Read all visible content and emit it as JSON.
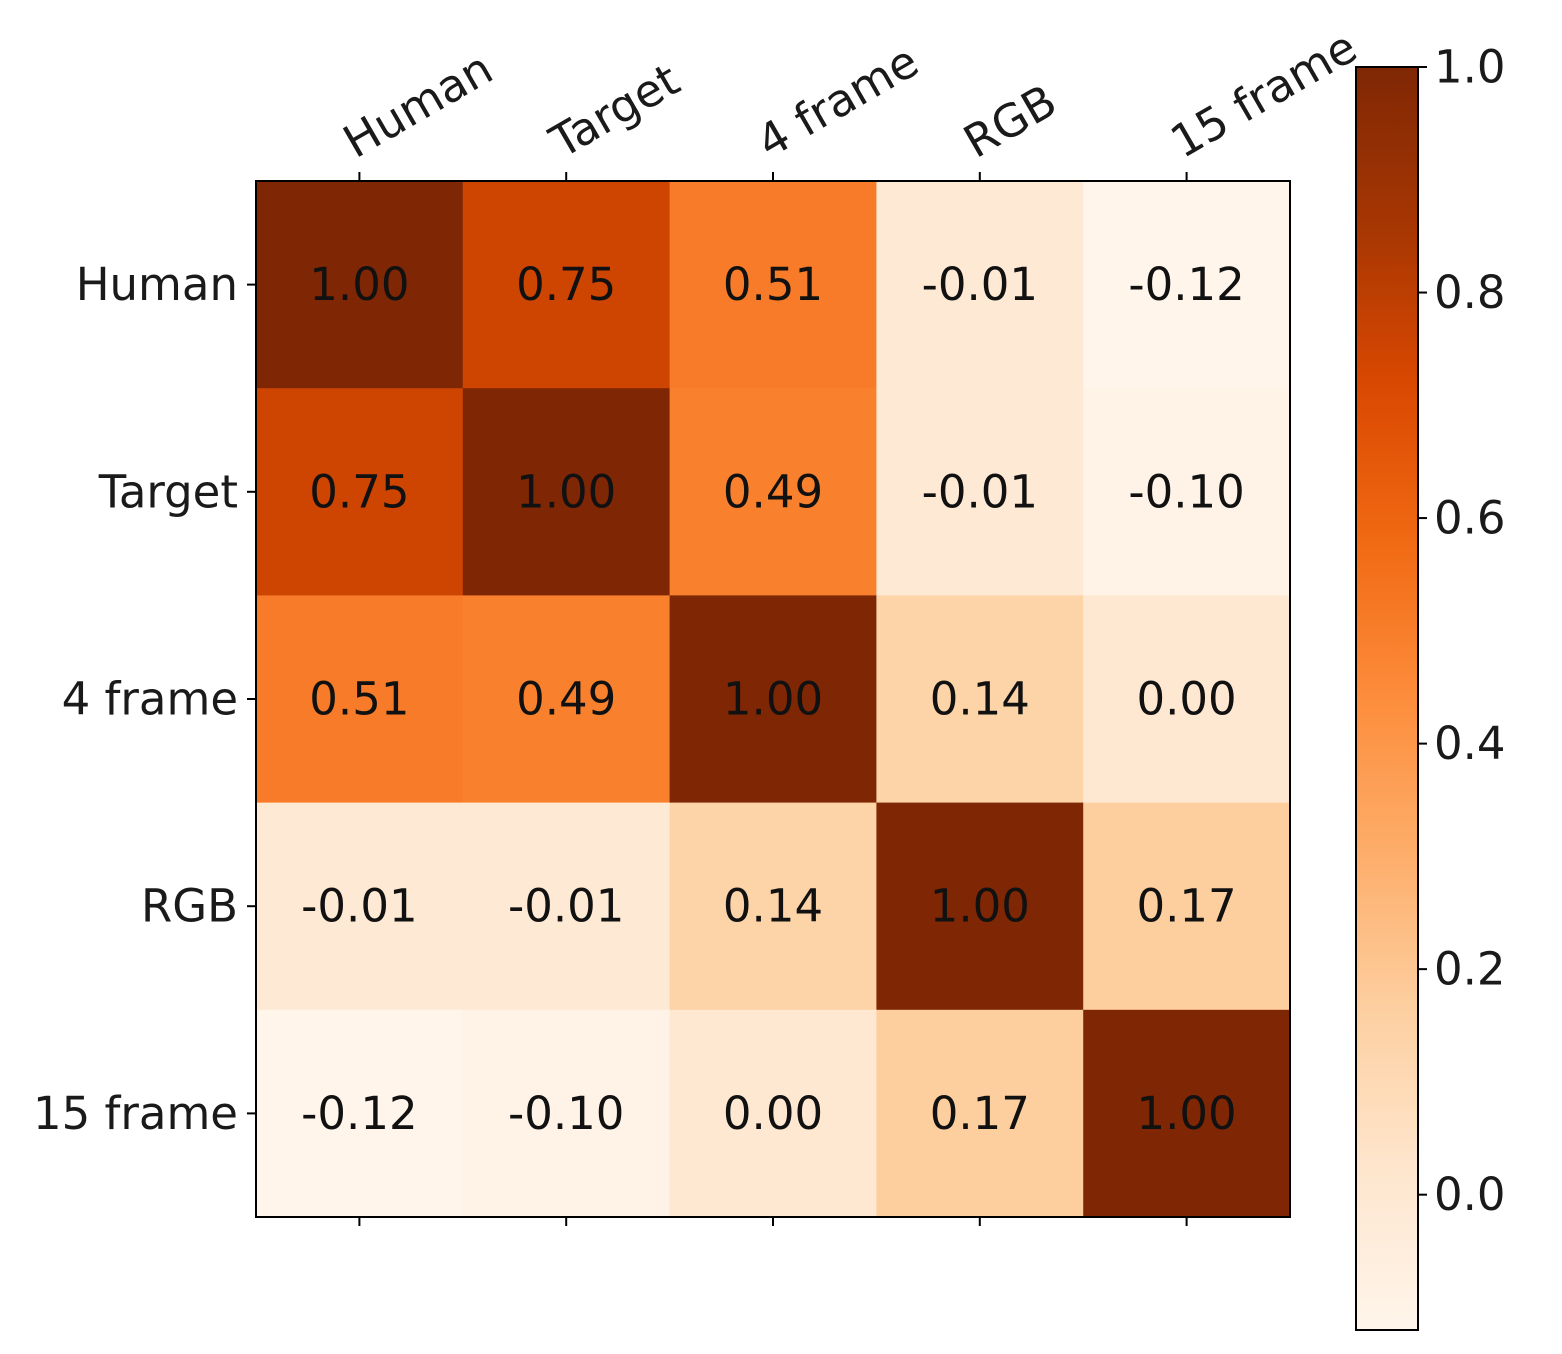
{
  "chart_data": {
    "type": "heatmap",
    "title": "",
    "xlabel": "",
    "ylabel": "",
    "row_labels": [
      "Human",
      "Target",
      "4 frame",
      "RGB",
      "15 frame"
    ],
    "col_labels": [
      "Human",
      "Target",
      "4 frame",
      "RGB",
      "15 frame"
    ],
    "values": [
      [
        1.0,
        0.75,
        0.51,
        -0.01,
        -0.12
      ],
      [
        0.75,
        1.0,
        0.49,
        -0.01,
        -0.1
      ],
      [
        0.51,
        0.49,
        1.0,
        0.14,
        0.0
      ],
      [
        -0.01,
        -0.01,
        0.14,
        1.0,
        0.17
      ],
      [
        -0.12,
        -0.1,
        0.0,
        0.17,
        1.0
      ]
    ],
    "cell_labels": [
      [
        "1.00",
        "0.75",
        "0.51",
        "-0.01",
        "-0.12"
      ],
      [
        "0.75",
        "1.00",
        "0.49",
        "-0.01",
        "-0.10"
      ],
      [
        "0.51",
        "0.49",
        "1.00",
        "0.14",
        "0.00"
      ],
      [
        "-0.01",
        "-0.01",
        "0.14",
        "1.00",
        "0.17"
      ],
      [
        "-0.12",
        "-0.10",
        "0.00",
        "0.17",
        "1.00"
      ]
    ],
    "colormap": "Oranges",
    "colormap_stops": [
      "#fff5eb",
      "#fee6ce",
      "#fdd0a2",
      "#fdae6b",
      "#fd8d3c",
      "#f16913",
      "#d94801",
      "#a63603",
      "#7f2704"
    ],
    "vmin": -0.12,
    "vmax": 1.0,
    "colorbar_ticks": [
      0.0,
      0.2,
      0.4,
      0.6,
      0.8,
      1.0
    ],
    "colorbar_tick_labels": [
      "0.0",
      "0.2",
      "0.4",
      "0.6",
      "0.8",
      "1.0"
    ],
    "colorbar_position": "right",
    "x_tick_position": "top",
    "grid": false
  }
}
